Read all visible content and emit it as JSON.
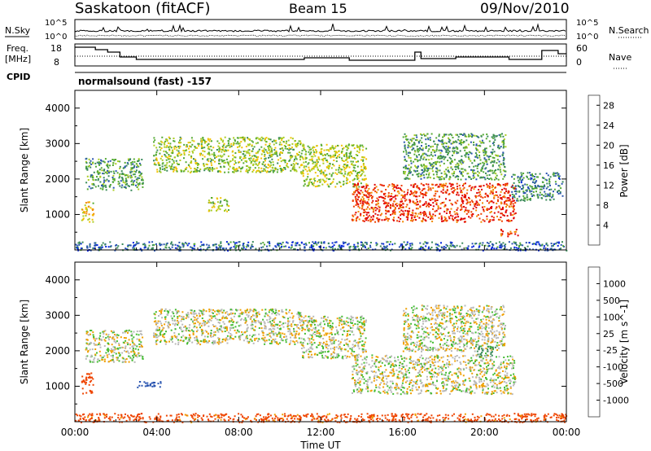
{
  "header": {
    "station": "Saskatoon (fitACF)",
    "beam": "Beam 15",
    "date": "09/Nov/2010"
  },
  "noise_panel": {
    "left_label": "N.Sky",
    "left_ticks": [
      "10^5",
      "10^0"
    ],
    "right_ticks": [
      "10^5",
      "10^0"
    ],
    "right_label": "N.Search"
  },
  "freq_panel": {
    "left_label_1": "Freq.",
    "left_label_2": "[MHz]",
    "left_ticks": [
      "18",
      "8"
    ],
    "right_ticks": [
      "60",
      "0"
    ],
    "right_label": "Nave"
  },
  "cpid": {
    "label": "CPID",
    "text": "normalsound (fast) -157"
  },
  "colors": {
    "power_scale": [
      "#0022dd",
      "#2a55b0",
      "#3a8a5a",
      "#55aa33",
      "#aacc22",
      "#f2c200",
      "#f28a00",
      "#f04000",
      "#e00000"
    ],
    "velocity_scale": [
      "#e00000",
      "#ee4400",
      "#f0a000",
      "#b8b8b8",
      "#b8b8b8",
      "#44bb33",
      "#3a8a5a",
      "#2a55b0",
      "#1a2ad0"
    ],
    "ground_gray": "#b8b8b8"
  },
  "chart_data": [
    {
      "type": "heatmap",
      "title": "",
      "xlabel": "",
      "ylabel": "Slant Range [km]",
      "x_ticks": [
        "00:00",
        "04:00",
        "08:00",
        "12:00",
        "16:00",
        "20:00",
        "00:00"
      ],
      "xlim_hours": [
        0,
        24
      ],
      "ylim": [
        0,
        4500
      ],
      "y_ticks": [
        1000,
        2000,
        3000,
        4000
      ],
      "colorbar": {
        "label": "Power [dB]",
        "ticks": [
          4,
          8,
          12,
          16,
          20,
          24,
          28
        ],
        "range": [
          0,
          30
        ]
      },
      "scatter_regions": [
        {
          "t0": 0.5,
          "t1": 3.3,
          "r0": 1700,
          "r1": 2600,
          "level": 10
        },
        {
          "t0": 3.8,
          "t1": 11.0,
          "r0": 2200,
          "r1": 3200,
          "level": 14
        },
        {
          "t0": 11.0,
          "t1": 14.2,
          "r0": 1800,
          "r1": 3000,
          "level": 15
        },
        {
          "t0": 13.5,
          "t1": 21.5,
          "r0": 800,
          "r1": 1900,
          "level": 26
        },
        {
          "t0": 16.0,
          "t1": 21.0,
          "r0": 2000,
          "r1": 3300,
          "level": 10
        },
        {
          "t0": 0.3,
          "t1": 0.9,
          "r0": 800,
          "r1": 1400,
          "level": 18
        },
        {
          "t0": 6.5,
          "t1": 7.5,
          "r0": 1100,
          "r1": 1500,
          "level": 14
        },
        {
          "t0": 20.7,
          "t1": 21.6,
          "r0": 400,
          "r1": 600,
          "level": 26
        },
        {
          "t0": 21.3,
          "t1": 23.8,
          "r0": 1400,
          "r1": 2200,
          "level": 8
        },
        {
          "t0": 0.0,
          "t1": 24.0,
          "r0": 0,
          "r1": 250,
          "level": 6
        }
      ]
    },
    {
      "type": "heatmap",
      "title": "",
      "xlabel": "Time UT",
      "ylabel": "Slant Range [km]",
      "x_ticks": [
        "00:00",
        "04:00",
        "08:00",
        "12:00",
        "16:00",
        "20:00",
        "00:00"
      ],
      "xlim_hours": [
        0,
        24
      ],
      "ylim": [
        0,
        4500
      ],
      "y_ticks": [
        1000,
        2000,
        3000,
        4000
      ],
      "colorbar": {
        "label": "Velocity [m s^-1]",
        "ticks": [
          1000,
          500,
          100,
          25,
          -25,
          -100,
          -500,
          -1000
        ]
      },
      "scatter_regions": [
        {
          "t0": 0.5,
          "t1": 3.3,
          "r0": 1700,
          "r1": 2600,
          "v": 0
        },
        {
          "t0": 3.8,
          "t1": 11.0,
          "r0": 2200,
          "r1": 3200,
          "v": 0
        },
        {
          "t0": 11.0,
          "t1": 14.2,
          "r0": 1800,
          "r1": 3000,
          "v": 0
        },
        {
          "t0": 13.5,
          "t1": 21.5,
          "r0": 800,
          "r1": 1900,
          "v": 0
        },
        {
          "t0": 16.0,
          "t1": 21.0,
          "r0": 2000,
          "r1": 3300,
          "v": 0
        },
        {
          "t0": 0.3,
          "t1": 0.9,
          "r0": 800,
          "r1": 1400,
          "v": -200
        },
        {
          "t0": 3.0,
          "t1": 4.2,
          "r0": 950,
          "r1": 1150,
          "v": 800
        },
        {
          "t0": 19.5,
          "t1": 20.5,
          "r0": 1850,
          "r1": 2150,
          "v": 150
        },
        {
          "t0": 0.0,
          "t1": 24.0,
          "r0": 0,
          "r1": 250,
          "v": -150
        }
      ]
    }
  ]
}
